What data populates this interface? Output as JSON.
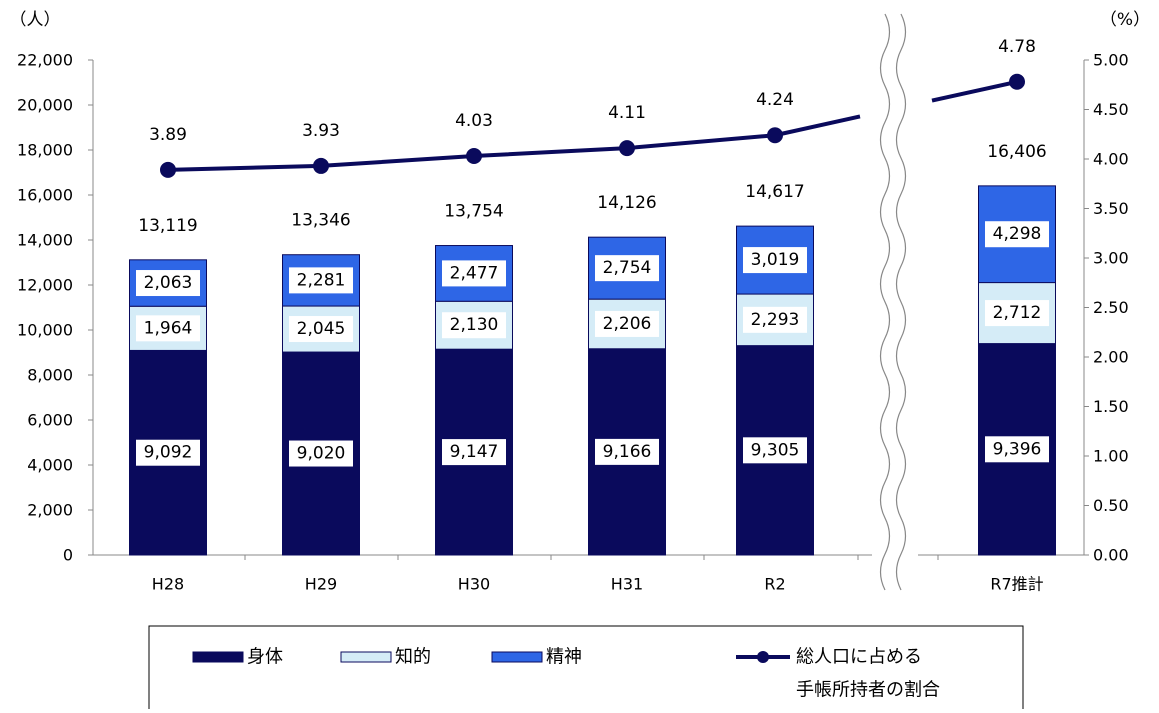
{
  "chart_data": {
    "type": "bar",
    "stacked": true,
    "categories": [
      "H28",
      "H29",
      "H30",
      "H31",
      "R2",
      "R7推計"
    ],
    "series": [
      {
        "name": "身体",
        "values": [
          9092,
          9020,
          9147,
          9166,
          9305,
          9396
        ],
        "labels": [
          "9,092",
          "9,020",
          "9,147",
          "9,166",
          "9,305",
          "9,396"
        ],
        "color": "#0a0a5c"
      },
      {
        "name": "知的",
        "values": [
          1964,
          2045,
          2130,
          2206,
          2293,
          2712
        ],
        "labels": [
          "1,964",
          "2,045",
          "2,130",
          "2,206",
          "2,293",
          "2,712"
        ],
        "color": "#d5ecf7"
      },
      {
        "name": "精神",
        "values": [
          2063,
          2281,
          2477,
          2754,
          3019,
          4298
        ],
        "labels": [
          "2,063",
          "2,281",
          "2,477",
          "2,754",
          "3,019",
          "4,298"
        ],
        "color": "#2e66e6"
      }
    ],
    "totals": [
      "13,119",
      "13,346",
      "13,754",
      "14,126",
      "14,617",
      "16,406"
    ],
    "line": {
      "name": "総人口に占める手帳所持者の割合",
      "legend_lines": [
        "総人口に占める",
        "手帳所持者の割合"
      ],
      "values": [
        3.89,
        3.93,
        4.03,
        4.11,
        4.24,
        4.78
      ],
      "labels": [
        "3.89",
        "3.93",
        "4.03",
        "4.11",
        "4.24",
        "4.78"
      ],
      "color": "#0a0a5c"
    },
    "y_left": {
      "unit": "（人）",
      "ylim": [
        0,
        22000
      ],
      "ticks": [
        "0",
        "2,000",
        "4,000",
        "6,000",
        "8,000",
        "10,000",
        "12,000",
        "14,000",
        "16,000",
        "18,000",
        "20,000",
        "22,000"
      ]
    },
    "y_right": {
      "unit": "（%）",
      "ylim": [
        0,
        5
      ],
      "ticks": [
        "0.00",
        "0.50",
        "1.00",
        "1.50",
        "2.00",
        "2.50",
        "3.00",
        "3.50",
        "4.00",
        "4.50",
        "5.00"
      ]
    },
    "axis_break": true,
    "legend_position": "bottom"
  }
}
